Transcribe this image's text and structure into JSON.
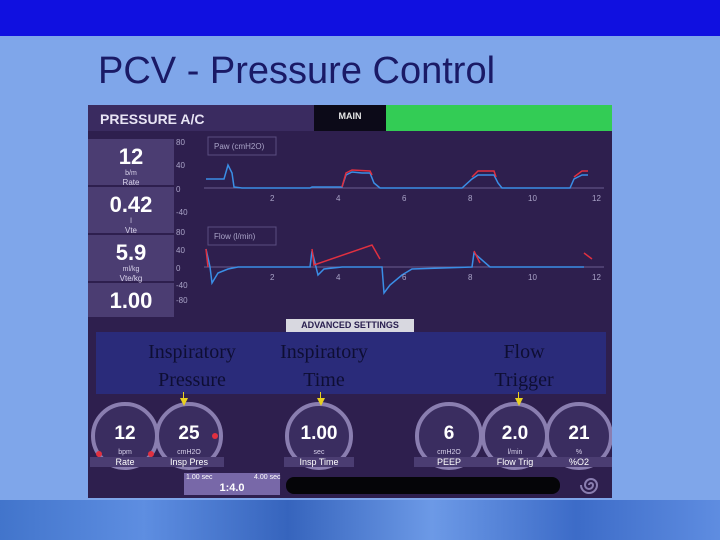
{
  "slide": {
    "title": "PCV - Pressure Control"
  },
  "mode": {
    "label": "PRESSURE A/C",
    "tab": "MAIN"
  },
  "params": [
    {
      "value": "12",
      "unit": "b/m",
      "label": "Rate"
    },
    {
      "value": "0.42",
      "unit": "l",
      "label": "Vte"
    },
    {
      "value": "5.9",
      "unit": "ml/kg",
      "label": "Vte/kg"
    },
    {
      "value": "1.00",
      "unit": "",
      "label": ""
    }
  ],
  "graphs": {
    "pressure": {
      "label": "Paw (cmH2O)",
      "ticks": [
        "80",
        "40",
        "0",
        "-40"
      ]
    },
    "flow": {
      "label": "Flow (l/min)",
      "ticks": [
        "80",
        "40",
        "0",
        "-40",
        "-80"
      ]
    },
    "x_ticks": [
      "2",
      "4",
      "6",
      "8",
      "10",
      "12"
    ]
  },
  "advanced": {
    "label": "ADVANCED SETTINGS"
  },
  "annotations": {
    "insp_pressure": [
      "Inspiratory",
      "Pressure"
    ],
    "insp_time": [
      "Inspiratory",
      "Time"
    ],
    "flow_trigger": [
      "Flow",
      "Trigger"
    ]
  },
  "knobs": [
    {
      "value": "12",
      "unit": "bpm",
      "label": "Rate"
    },
    {
      "value": "25",
      "unit": "cmH2O",
      "label": "Insp Pres"
    },
    {
      "value": "1.00",
      "unit": "sec",
      "label": "Insp Time"
    },
    {
      "value": "6",
      "unit": "cmH2O",
      "label": "PEEP"
    },
    {
      "value": "2.0",
      "unit": "l/min",
      "label": "Flow Trig"
    },
    {
      "value": "21",
      "unit": "%",
      "label": "%O2"
    }
  ],
  "ratio": {
    "value": "1:4.0",
    "low": "1.00 sec",
    "high": "4.00 sec"
  },
  "colors": {
    "panel": "#2e1f4e",
    "accent_green": "#33cc55",
    "pressure_trace": "#e03040",
    "flow_trace": "#3a8ee6",
    "annotation_arrow": "#e8d020"
  }
}
